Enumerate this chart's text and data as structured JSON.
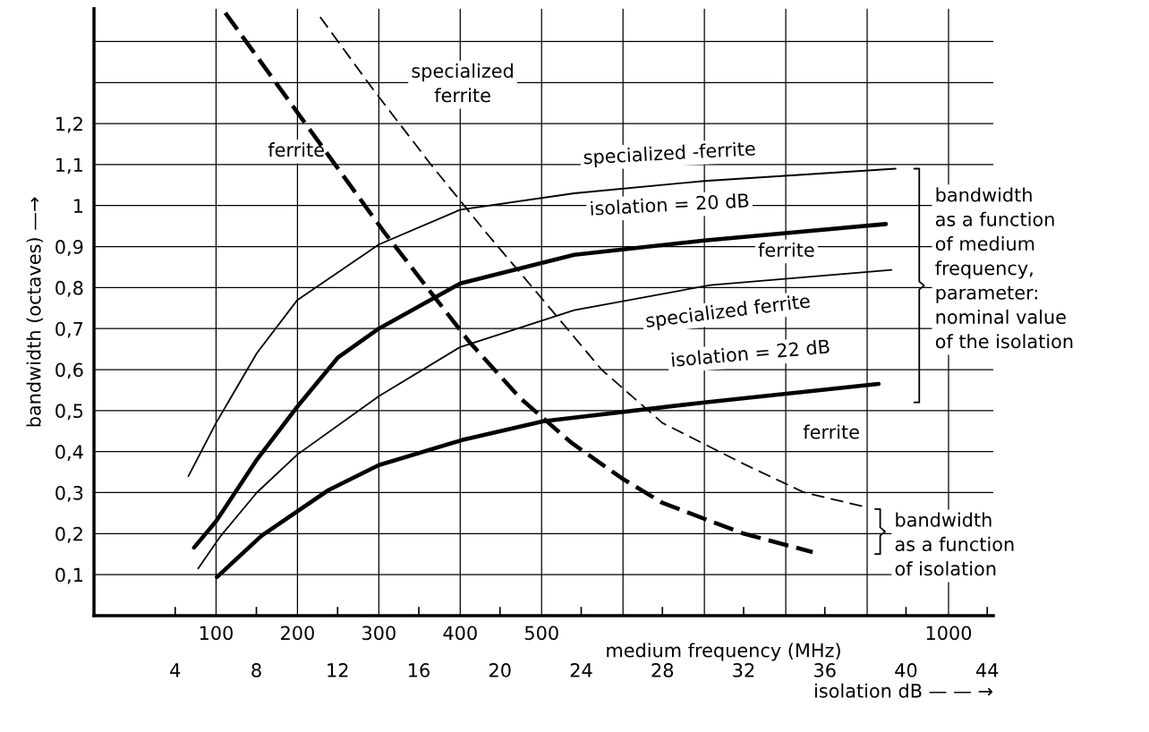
{
  "chart_data": {
    "type": "line",
    "xlabel": "medium frequency (MHz)",
    "x2label": "isolation dB — — →",
    "ylabel": "bandwidth (octaves) —→",
    "xlim": [
      -50,
      1055
    ],
    "xticks": [
      100,
      200,
      300,
      400,
      500,
      {
        "value": 600,
        "label": null
      },
      {
        "value": 700,
        "label": null
      },
      {
        "value": 800,
        "label": null
      },
      {
        "value": 900,
        "label": null
      },
      1000
    ],
    "x2lim": [
      0,
      44.3
    ],
    "x2ticks": [
      4,
      8,
      12,
      16,
      20,
      24,
      28,
      32,
      36,
      40,
      44
    ],
    "ylim": [
      0,
      1.48
    ],
    "yticks": [
      {
        "value": 0.1,
        "label": "0,1"
      },
      {
        "value": 0.2,
        "label": "0,2"
      },
      {
        "value": 0.3,
        "label": "0,3"
      },
      {
        "value": 0.4,
        "label": "0,4"
      },
      {
        "value": 0.5,
        "label": "0,5"
      },
      {
        "value": 0.6,
        "label": "0,6"
      },
      {
        "value": 0.7,
        "label": "0,7"
      },
      {
        "value": 0.8,
        "label": "0,8"
      },
      {
        "value": 0.9,
        "label": "0,9"
      },
      {
        "value": 1.0,
        "label": "1"
      },
      {
        "value": 1.1,
        "label": "1,1"
      },
      {
        "value": 1.2,
        "label": "1,2"
      },
      {
        "value": 1.3,
        "label": null
      },
      {
        "value": 1.4,
        "label": null
      }
    ],
    "grid": true,
    "marker": "none",
    "series": [
      {
        "color": "#000000",
        "line_style": "solid",
        "x": [
          66,
          100,
          150,
          200,
          300,
          400,
          540,
          700,
          935
        ],
        "values": [
          0.34,
          0.47,
          0.64,
          0.77,
          0.905,
          0.99,
          1.03,
          1.06,
          1.09
        ]
      },
      {
        "color": "#000000",
        "line_style": "solid",
        "x": [
          73,
          100,
          150,
          200,
          250,
          300,
          400,
          540,
          700,
          923
        ],
        "values": [
          0.166,
          0.23,
          0.38,
          0.51,
          0.63,
          0.7,
          0.81,
          0.88,
          0.915,
          0.955
        ]
      },
      {
        "color": "#000000",
        "line_style": "solid",
        "x": [
          78,
          106,
          150,
          200,
          300,
          400,
          540,
          707,
          930
        ],
        "values": [
          0.115,
          0.195,
          0.3,
          0.393,
          0.535,
          0.655,
          0.745,
          0.806,
          0.843
        ]
      },
      {
        "color": "#000000",
        "line_style": "solid",
        "x": [
          101,
          156,
          238,
          300,
          402,
          502,
          700,
          914
        ],
        "values": [
          0.094,
          0.195,
          0.306,
          0.367,
          0.428,
          0.474,
          0.52,
          0.565
        ]
      },
      {
        "color": "#000000",
        "line_style": "dashed",
        "axis": "x2",
        "x": [
          6.47,
          10.56,
          14.3,
          18.45,
          21,
          23.56,
          26,
          28,
          32,
          35.4
        ],
        "values": [
          1.47,
          1.19,
          0.935,
          0.67,
          0.53,
          0.42,
          0.335,
          0.275,
          0.2,
          0.155
        ]
      },
      {
        "color": "#000000",
        "line_style": "dashed",
        "axis": "x2",
        "x": [
          11.14,
          13.8,
          16.6,
          19.3,
          22,
          25,
          28,
          32,
          35,
          38
        ],
        "values": [
          1.46,
          1.28,
          1.1,
          0.935,
          0.777,
          0.6,
          0.47,
          0.37,
          0.3,
          0.265
        ]
      }
    ],
    "annotations": [
      "specialized\nferrite",
      "ferrite",
      "specialized -ferrite",
      "isolation = 20 dB",
      "ferrite",
      "specialized ferrite",
      "isolation = 22 dB",
      "ferrite",
      "bandwidth\nas a function\nof medium\nfrequency,\nparameter:\nnominal value\nof the isolation",
      "bandwidth\nas a function\nof isolation"
    ]
  }
}
